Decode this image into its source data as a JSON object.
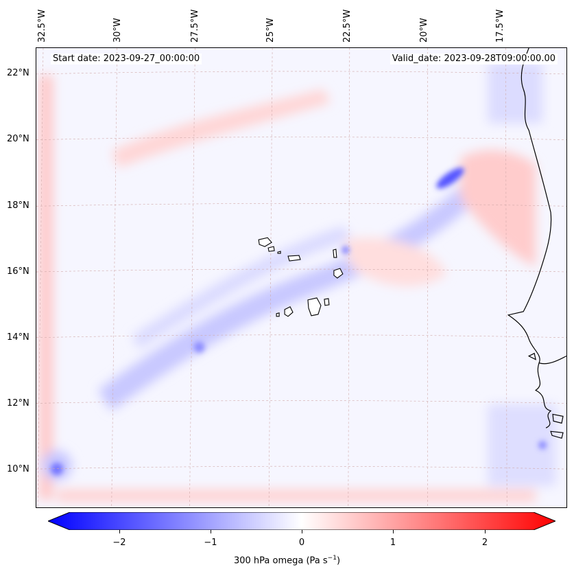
{
  "header": {
    "start_date": "Start date: 2023-09-27_00:00:00",
    "valid_date": "Valid_date: 2023-09-28T09:00:00.00"
  },
  "map": {
    "lon_labels": [
      "32.5°W",
      "30°W",
      "27.5°W",
      "25°W",
      "22.5°W",
      "20°W",
      "17.5°W"
    ],
    "lat_labels": [
      "22°N",
      "20°N",
      "18°N",
      "16°N",
      "14°N",
      "12°N",
      "10°N"
    ],
    "colors": {
      "negative": "#0000ff",
      "neutral": "#ffffff",
      "positive": "#ff0000",
      "coast": "#000000"
    }
  },
  "colorbar": {
    "ticks": [
      "−2",
      "−1",
      "0",
      "1",
      "2"
    ],
    "min": -2.7,
    "max": 2.7,
    "label_main": "300 hPa omega (Pa s",
    "label_sup": "−1",
    "label_end": ")"
  }
}
